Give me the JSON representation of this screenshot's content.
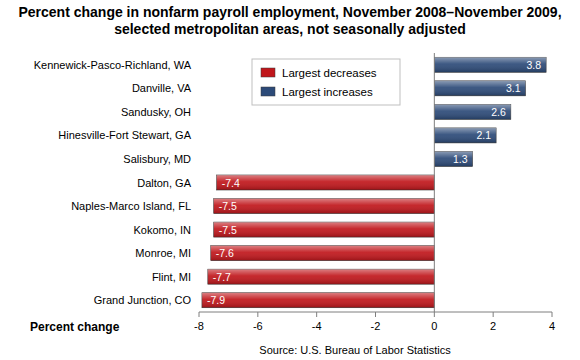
{
  "chart_data": {
    "type": "bar",
    "orientation": "horizontal",
    "title": "Percent change in nonfarm payroll employment, November 2008–November 2009, selected metropolitan areas, not seasonally adjusted",
    "x_label": "Percent change",
    "source": "Source: U.S. Bureau of Labor Statistics",
    "categories": [
      "Kennewick-Pasco-Richland, WA",
      "Danville, VA",
      "Sandusky, OH",
      "Hinesville-Fort Stewart, GA",
      "Salisbury, MD",
      "Dalton, GA",
      "Naples-Marco Island, FL",
      "Kokomo, IN",
      "Monroe, MI",
      "Flint, MI",
      "Grand Junction, CO"
    ],
    "series": [
      {
        "name": "Largest decreases",
        "color": "#c0161b",
        "values": [
          null,
          null,
          null,
          null,
          null,
          -7.4,
          -7.5,
          -7.5,
          -7.6,
          -7.7,
          -7.9
        ]
      },
      {
        "name": "Largest increases",
        "color": "#2c4a78",
        "values": [
          3.8,
          3.1,
          2.6,
          2.1,
          1.3,
          null,
          null,
          null,
          null,
          null,
          null
        ]
      }
    ],
    "xlim": [
      -8,
      4
    ],
    "xticks": [
      -8,
      -6,
      -4,
      -2,
      0,
      2,
      4
    ],
    "data_labels": true,
    "legend": "top",
    "grid": false
  }
}
